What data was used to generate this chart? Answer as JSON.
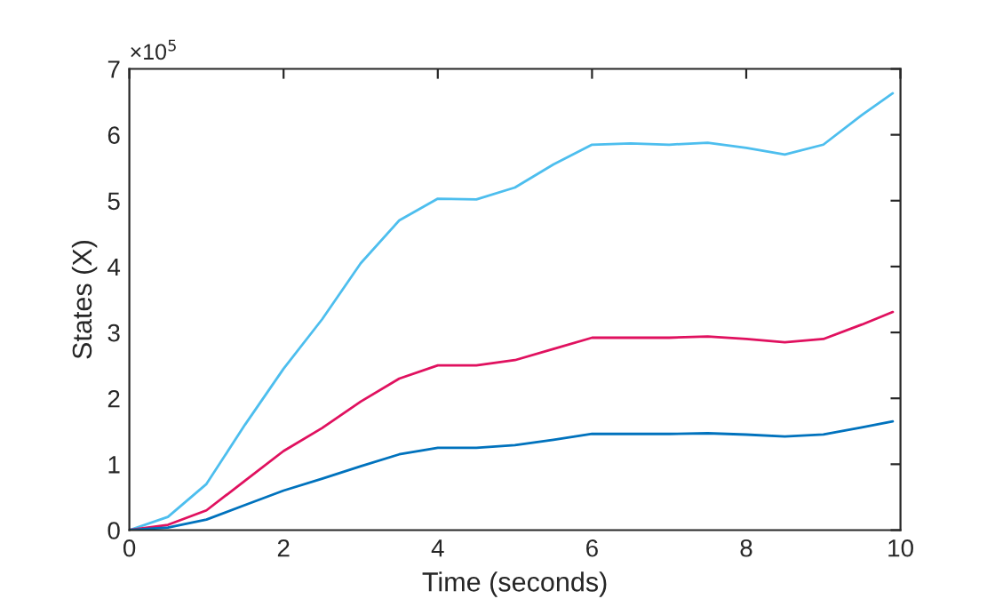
{
  "chart_data": {
    "type": "line",
    "xlabel": "Time (seconds)",
    "ylabel": "States (X)",
    "x": [
      0,
      0.5,
      1,
      1.5,
      2,
      2.5,
      3,
      3.5,
      4,
      4.5,
      5,
      5.5,
      6,
      6.5,
      7,
      7.5,
      8,
      8.5,
      9,
      9.5,
      9.9
    ],
    "series": [
      {
        "color": "#4dbeee",
        "values": [
          0,
          0.2,
          0.7,
          1.6,
          2.45,
          3.2,
          4.05,
          4.7,
          5.03,
          5.02,
          5.2,
          5.55,
          5.85,
          5.87,
          5.85,
          5.88,
          5.8,
          5.7,
          5.85,
          6.3,
          6.63
        ]
      },
      {
        "color": "#e0115f",
        "values": [
          0,
          0.08,
          0.3,
          0.75,
          1.2,
          1.55,
          1.95,
          2.3,
          2.5,
          2.5,
          2.58,
          2.75,
          2.92,
          2.92,
          2.92,
          2.94,
          2.9,
          2.85,
          2.9,
          3.12,
          3.31
        ]
      },
      {
        "color": "#0072bd",
        "values": [
          0,
          0.04,
          0.16,
          0.38,
          0.6,
          0.78,
          0.97,
          1.15,
          1.25,
          1.25,
          1.29,
          1.37,
          1.46,
          1.46,
          1.46,
          1.47,
          1.45,
          1.42,
          1.45,
          1.56,
          1.65
        ]
      }
    ],
    "xlim": [
      0,
      10
    ],
    "xticks": [
      0,
      2,
      4,
      6,
      8,
      10
    ],
    "ylim": [
      0,
      7
    ],
    "yticks": [
      0,
      1,
      2,
      3,
      4,
      5,
      6,
      7
    ],
    "annotations": [
      "×10$^{5}$"
    ],
    "grid": false
  }
}
